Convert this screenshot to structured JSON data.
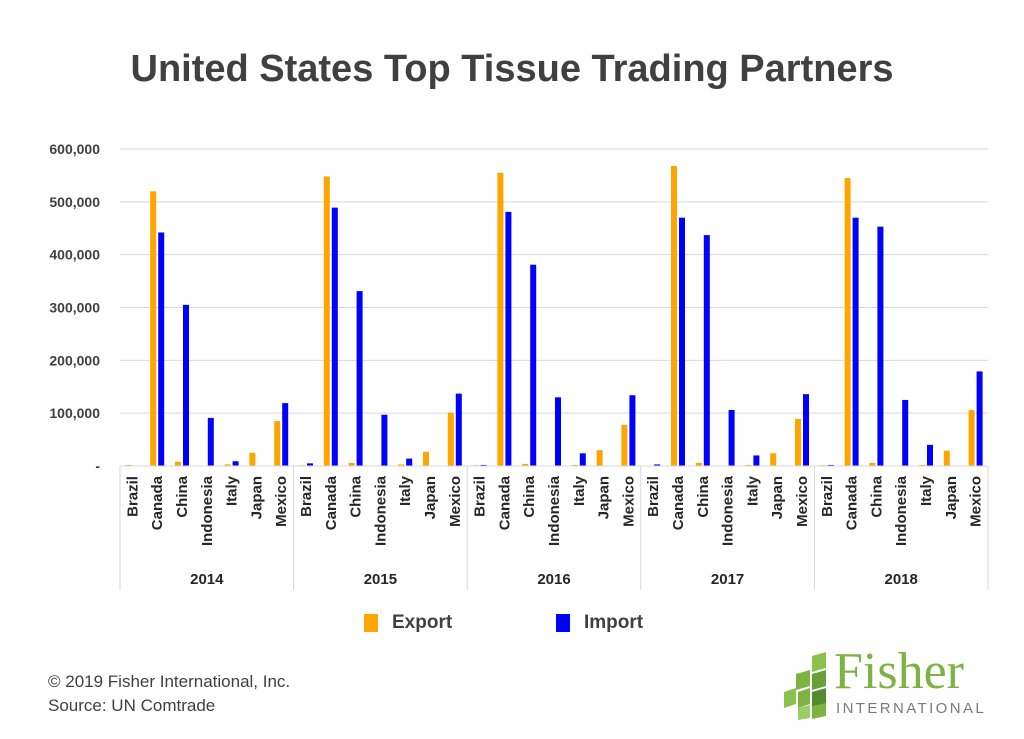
{
  "chart_data": {
    "type": "bar",
    "title": "United States Top Tissue Trading Partners",
    "groups": [
      "2014",
      "2015",
      "2016",
      "2017",
      "2018"
    ],
    "categories": [
      "Brazil",
      "Canada",
      "China",
      "Indonesia",
      "Italy",
      "Japan",
      "Mexico"
    ],
    "series": [
      {
        "name": "Export",
        "color": "#FFA500",
        "values": [
          [
            2000,
            520000,
            8000,
            0,
            3000,
            25000,
            85000
          ],
          [
            1500,
            548000,
            6000,
            0,
            3000,
            27000,
            101000
          ],
          [
            1500,
            555000,
            4000,
            0,
            2000,
            30000,
            78000
          ],
          [
            1000,
            568000,
            6000,
            0,
            2000,
            24000,
            89000
          ],
          [
            1500,
            545000,
            6000,
            0,
            2000,
            29000,
            106000
          ]
        ]
      },
      {
        "name": "Import",
        "color": "#0000FF",
        "values": [
          [
            1000,
            442000,
            305000,
            91000,
            9000,
            1000,
            119000
          ],
          [
            5000,
            489000,
            331000,
            97000,
            14000,
            1000,
            137000
          ],
          [
            2000,
            481000,
            381000,
            130000,
            24000,
            1000,
            134000
          ],
          [
            3000,
            470000,
            437000,
            106000,
            20000,
            1000,
            136000
          ],
          [
            2000,
            470000,
            453000,
            125000,
            40000,
            1000,
            179000
          ]
        ]
      }
    ],
    "ylim": [
      0,
      600000
    ],
    "yticks": [
      0,
      100000,
      200000,
      300000,
      400000,
      500000,
      600000
    ],
    "ytick_labels": [
      "-",
      "100,000",
      "200,000",
      "300,000",
      "400,000",
      "500,000",
      "600,000"
    ],
    "grid": true,
    "legend": "bottom-center"
  },
  "legend": {
    "export_label": "Export",
    "import_label": "Import",
    "export_color": "#FFA500",
    "import_color": "#0000FF"
  },
  "footer": {
    "copyright": "© 2019 Fisher International, Inc.",
    "source": "Source: UN Comtrade"
  },
  "logo": {
    "name": "Fisher",
    "tagline": "INTERNATIONAL"
  }
}
